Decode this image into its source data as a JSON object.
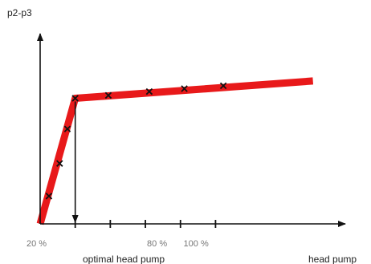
{
  "chart_data": {
    "type": "line",
    "ylabel": "p2-p3",
    "xlabel": "head pump",
    "annotation": "optimal head pump",
    "tick_labels": [
      {
        "x": 20,
        "label": "20 %"
      },
      {
        "x": 80,
        "label": "80 %"
      },
      {
        "x": 100,
        "label": "100 %"
      }
    ],
    "tick_marks_x": [
      20,
      38,
      56,
      74,
      92,
      110
    ],
    "xlim": [
      20,
      170
    ],
    "ylim": [
      0,
      1
    ],
    "series": [
      {
        "color": "#e8191a",
        "line_points": [
          {
            "x": 20,
            "y": 0.0
          },
          {
            "x": 38,
            "y": 0.655
          },
          {
            "x": 160,
            "y": 0.745
          }
        ],
        "markers": [
          {
            "x": 24.5,
            "y": 0.145
          },
          {
            "x": 30,
            "y": 0.315
          },
          {
            "x": 34,
            "y": 0.495
          },
          {
            "x": 38,
            "y": 0.655
          },
          {
            "x": 55,
            "y": 0.67
          },
          {
            "x": 76,
            "y": 0.69
          },
          {
            "x": 94,
            "y": 0.705
          },
          {
            "x": 114,
            "y": 0.72
          }
        ]
      }
    ],
    "optimal_marker_x": 38,
    "grid": false,
    "legend": "none"
  },
  "colors": {
    "line": "#e8191a",
    "axis": "#111111",
    "marker": "#111111",
    "tick_label": "#777777"
  }
}
